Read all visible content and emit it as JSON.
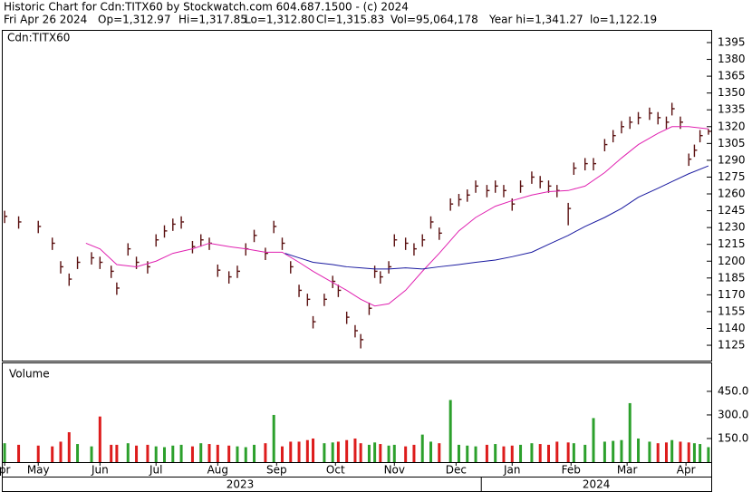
{
  "header": {
    "title": "Historic Chart for Cdn:TITX60 by Stockwatch.com 604.687.1500 - (c) 2024",
    "fields": [
      "Fri Apr 26 2024",
      "Op=1,312.97",
      "Hi=1,317.85",
      "Lo=1,312.80",
      "Cl=1,315.83",
      "Vol=95,064,178",
      "Year hi=1,341.27",
      "lo=1,122.19"
    ]
  },
  "chart_data": {
    "type": "ohlc",
    "symbol_label": "Cdn:TITX60",
    "color": "#5a1010",
    "x": [
      1,
      6,
      13,
      18,
      21,
      24,
      27,
      32,
      35,
      39,
      41,
      45,
      48,
      52,
      55,
      58,
      61,
      64,
      68,
      71,
      74,
      77,
      81,
      84,
      87,
      90,
      94,
      97,
      100,
      103,
      106,
      109,
      111,
      115,
      118,
      120,
      123,
      126,
      128,
      131,
      133,
      135,
      138,
      140,
      144,
      147,
      150,
      153,
      156,
      160,
      163,
      166,
      169,
      173,
      176,
      179,
      182,
      185,
      189,
      192,
      195,
      198,
      202,
      204,
      208,
      211,
      215,
      218,
      221,
      224,
      227,
      231,
      234,
      237,
      239,
      242,
      245,
      247,
      249,
      252
    ],
    "high": [
      1245,
      1240,
      1236,
      1221,
      1200,
      1189,
      1204,
      1208,
      1204,
      1196,
      1181,
      1216,
      1204,
      1200,
      1224,
      1232,
      1238,
      1240,
      1218,
      1224,
      1221,
      1197,
      1191,
      1196,
      1216,
      1228,
      1212,
      1236,
      1221,
      1200,
      1179,
      1171,
      1151,
      1171,
      1187,
      1179,
      1155,
      1143,
      1135,
      1163,
      1196,
      1191,
      1200,
      1224,
      1221,
      1216,
      1224,
      1240,
      1230,
      1256,
      1260,
      1264,
      1272,
      1268,
      1272,
      1268,
      1256,
      1272,
      1280,
      1276,
      1272,
      1268,
      1252,
      1288,
      1292,
      1292,
      1309,
      1317,
      1325,
      1329,
      1333,
      1337,
      1333,
      1329,
      1341.27,
      1329,
      1296,
      1304,
      1317,
      1317.85
    ],
    "low": [
      1234,
      1229,
      1225,
      1210,
      1189,
      1178,
      1193,
      1197,
      1193,
      1185,
      1170,
      1205,
      1193,
      1189,
      1213,
      1221,
      1227,
      1229,
      1207,
      1213,
      1210,
      1186,
      1180,
      1185,
      1205,
      1217,
      1201,
      1225,
      1210,
      1189,
      1168,
      1160,
      1140,
      1160,
      1176,
      1168,
      1144,
      1132,
      1122.19,
      1152,
      1185,
      1180,
      1189,
      1213,
      1210,
      1205,
      1213,
      1229,
      1219,
      1245,
      1249,
      1253,
      1261,
      1257,
      1261,
      1257,
      1245,
      1261,
      1269,
      1265,
      1261,
      1257,
      1232,
      1277,
      1281,
      1281,
      1298,
      1306,
      1314,
      1318,
      1322,
      1326,
      1322,
      1318,
      1330,
      1318,
      1285,
      1293,
      1306,
      1312.8
    ],
    "close": [
      1240,
      1235,
      1231,
      1216,
      1195,
      1184,
      1199,
      1203,
      1199,
      1191,
      1176,
      1211,
      1199,
      1195,
      1219,
      1227,
      1233,
      1235,
      1213,
      1219,
      1216,
      1192,
      1186,
      1191,
      1211,
      1223,
      1207,
      1231,
      1216,
      1195,
      1174,
      1166,
      1146,
      1166,
      1182,
      1174,
      1150,
      1138,
      1130,
      1158,
      1191,
      1186,
      1195,
      1219,
      1216,
      1211,
      1219,
      1235,
      1225,
      1251,
      1255,
      1259,
      1267,
      1263,
      1267,
      1263,
      1251,
      1267,
      1275,
      1271,
      1267,
      1263,
      1247,
      1283,
      1287,
      1287,
      1304,
      1312,
      1320,
      1324,
      1328,
      1332,
      1328,
      1324,
      1336,
      1324,
      1291,
      1299,
      1312,
      1315.83
    ],
    "moving_averages": [
      {
        "color": "#e020b0",
        "x": [
          30,
          35,
          41,
          48,
          55,
          61,
          68,
          74,
          81,
          87,
          94,
          100,
          106,
          111,
          118,
          123,
          128,
          133,
          138,
          144,
          150,
          156,
          163,
          169,
          176,
          182,
          189,
          195,
          202,
          208,
          215,
          221,
          227,
          234,
          239,
          245,
          252
        ],
        "values": [
          1216,
          1211,
          1197,
          1195,
          1200,
          1207,
          1211,
          1216,
          1213,
          1211,
          1208,
          1208,
          1199,
          1191,
          1181,
          1174,
          1166,
          1160,
          1162,
          1174,
          1191,
          1207,
          1227,
          1239,
          1249,
          1254,
          1259,
          1262,
          1263,
          1267,
          1279,
          1292,
          1304,
          1314,
          1320,
          1320,
          1318
        ]
      },
      {
        "color": "#1a1aa0",
        "x": [
          101,
          106,
          111,
          118,
          123,
          128,
          133,
          138,
          144,
          150,
          156,
          163,
          169,
          176,
          182,
          189,
          195,
          202,
          208,
          215,
          221,
          227,
          234,
          239,
          245,
          252
        ],
        "values": [
          1207,
          1203,
          1199,
          1197,
          1195,
          1194,
          1193,
          1193,
          1194,
          1193,
          1195,
          1197,
          1199,
          1201,
          1204,
          1208,
          1215,
          1223,
          1231,
          1239,
          1247,
          1257,
          1265,
          1271,
          1278,
          1285
        ]
      }
    ],
    "xlim": [
      0,
      253
    ],
    "ylim": [
      1111.3,
      1406.3
    ],
    "yticks": [
      1395,
      1380,
      1365,
      1350,
      1335,
      1320,
      1305,
      1290,
      1275,
      1260,
      1245,
      1230,
      1215,
      1200,
      1185,
      1170,
      1155,
      1140,
      1125
    ],
    "xticks": [
      {
        "value": 1,
        "label": "pr"
      },
      {
        "value": 13,
        "label": "May"
      },
      {
        "value": 35,
        "label": "Jun"
      },
      {
        "value": 55,
        "label": "Jul"
      },
      {
        "value": 77,
        "label": "Aug"
      },
      {
        "value": 98,
        "label": "Sep"
      },
      {
        "value": 119,
        "label": "Oct"
      },
      {
        "value": 140,
        "label": "Nov"
      },
      {
        "value": 162,
        "label": "Dec"
      },
      {
        "value": 182,
        "label": "Jan"
      },
      {
        "value": 203,
        "label": "Feb"
      },
      {
        "value": 223,
        "label": "Mar"
      },
      {
        "value": 244,
        "label": "Apr"
      }
    ],
    "year_ticks": [
      {
        "value": 85,
        "label": "2023"
      },
      {
        "value": 212,
        "label": "2024"
      }
    ],
    "year_divider": 171,
    "volume": {
      "label": "Volume",
      "up_color": "#2ca02c",
      "down_color": "#dd1c1c",
      "ylim": [
        0,
        634
      ],
      "yticks": [
        {
          "value": 450,
          "label": "450.0"
        },
        {
          "value": 300,
          "label": "300.0"
        },
        {
          "value": 150,
          "label": "150.0"
        }
      ],
      "values": [
        120,
        110,
        105,
        100,
        130,
        190,
        115,
        100,
        290,
        110,
        110,
        120,
        105,
        110,
        100,
        95,
        105,
        110,
        100,
        120,
        115,
        110,
        105,
        100,
        95,
        110,
        120,
        300,
        100,
        130,
        130,
        140,
        150,
        120,
        125,
        130,
        140,
        150,
        120,
        110,
        125,
        115,
        105,
        110,
        100,
        110,
        175,
        130,
        120,
        395,
        110,
        105,
        100,
        110,
        115,
        100,
        105,
        110,
        120,
        115,
        110,
        130,
        125,
        120,
        110,
        280,
        130,
        135,
        140,
        375,
        150,
        130,
        120,
        125,
        140,
        130,
        125,
        120,
        115,
        95
      ]
    }
  }
}
